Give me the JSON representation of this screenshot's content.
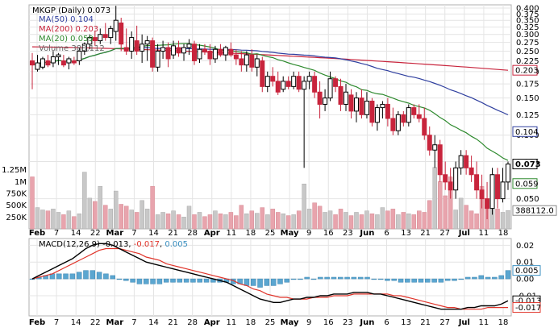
{
  "chart_data": [
    {
      "type": "candlestick",
      "title": "MKGP (Daily) 0.073",
      "ticker": "MKGP",
      "period": "Daily",
      "last_price": "0.073",
      "y_scale": "log",
      "ylim": [
        0.04,
        0.4
      ],
      "y_ticks": [
        "0.400",
        "0.375",
        "0.350",
        "0.325",
        "0.300",
        "0.275",
        "0.250",
        "0.225",
        "0.200",
        "0.175",
        "0.150",
        "0.125",
        "0.100",
        "0.075",
        "0.050"
      ],
      "volume_ticks": [
        "1.25M",
        "1M",
        "750K",
        "500K",
        "250K"
      ],
      "x_labels": [
        "Feb",
        "7",
        "14",
        "22",
        "Mar",
        "7",
        "14",
        "21",
        "28",
        "Apr",
        "11",
        "18",
        "25",
        "May",
        "9",
        "16",
        "23",
        "Jun",
        "6",
        "13",
        "21",
        "27",
        "Jul",
        "11",
        "18"
      ],
      "series": [
        {
          "name": "MA(50)",
          "label": "MA(50) 0.104",
          "value": "0.104",
          "color": "#2f3f9f"
        },
        {
          "name": "MA(200)",
          "label": "MA(200) 0.203",
          "value": "0.203",
          "color": "#c8243c"
        },
        {
          "name": "MA(20)",
          "label": "MA(20) 0.059",
          "value": "0.059",
          "color": "#2e8a2e"
        },
        {
          "name": "Volume",
          "label": "Volume 388,112",
          "value": "388,112",
          "color": "#999999"
        }
      ],
      "right_labels": [
        {
          "value": "0.203",
          "series": "MA(200)"
        },
        {
          "value": "0.104",
          "series": "MA(50)"
        },
        {
          "value": "0.073",
          "series": "Price"
        },
        {
          "value": "0.059",
          "series": "MA(20)"
        },
        {
          "value": "388112.0",
          "series": "Volume"
        }
      ],
      "candles": [
        [
          0.225,
          0.245,
          0.165,
          0.215
        ],
        [
          0.205,
          0.24,
          0.2,
          0.22
        ],
        [
          0.21,
          0.235,
          0.205,
          0.23
        ],
        [
          0.225,
          0.24,
          0.21,
          0.215
        ],
        [
          0.22,
          0.25,
          0.21,
          0.235
        ],
        [
          0.235,
          0.245,
          0.215,
          0.24
        ],
        [
          0.225,
          0.24,
          0.21,
          0.215
        ],
        [
          0.22,
          0.235,
          0.205,
          0.23
        ],
        [
          0.225,
          0.235,
          0.215,
          0.22
        ],
        [
          0.225,
          0.26,
          0.215,
          0.25
        ],
        [
          0.25,
          0.275,
          0.24,
          0.27
        ],
        [
          0.27,
          0.3,
          0.255,
          0.29
        ],
        [
          0.29,
          0.31,
          0.265,
          0.28
        ],
        [
          0.28,
          0.32,
          0.27,
          0.3
        ],
        [
          0.3,
          0.34,
          0.28,
          0.29
        ],
        [
          0.29,
          0.33,
          0.27,
          0.32
        ],
        [
          0.31,
          0.41,
          0.28,
          0.35
        ],
        [
          0.34,
          0.36,
          0.25,
          0.27
        ],
        [
          0.26,
          0.32,
          0.24,
          0.25
        ],
        [
          0.25,
          0.31,
          0.23,
          0.29
        ],
        [
          0.28,
          0.33,
          0.24,
          0.25
        ],
        [
          0.25,
          0.3,
          0.22,
          0.27
        ],
        [
          0.27,
          0.295,
          0.225,
          0.28
        ],
        [
          0.28,
          0.29,
          0.2,
          0.21
        ],
        [
          0.21,
          0.27,
          0.2,
          0.25
        ],
        [
          0.25,
          0.28,
          0.23,
          0.26
        ],
        [
          0.26,
          0.275,
          0.21,
          0.23
        ],
        [
          0.24,
          0.28,
          0.23,
          0.265
        ],
        [
          0.26,
          0.28,
          0.235,
          0.245
        ],
        [
          0.245,
          0.27,
          0.225,
          0.26
        ],
        [
          0.26,
          0.285,
          0.24,
          0.27
        ],
        [
          0.27,
          0.28,
          0.215,
          0.225
        ],
        [
          0.23,
          0.27,
          0.22,
          0.255
        ],
        [
          0.255,
          0.27,
          0.24,
          0.25
        ],
        [
          0.25,
          0.27,
          0.215,
          0.23
        ],
        [
          0.23,
          0.265,
          0.22,
          0.255
        ],
        [
          0.255,
          0.27,
          0.235,
          0.24
        ],
        [
          0.24,
          0.265,
          0.225,
          0.26
        ],
        [
          0.255,
          0.275,
          0.235,
          0.24
        ],
        [
          0.24,
          0.255,
          0.215,
          0.23
        ],
        [
          0.23,
          0.25,
          0.2,
          0.215
        ],
        [
          0.215,
          0.25,
          0.2,
          0.24
        ],
        [
          0.24,
          0.255,
          0.2,
          0.21
        ],
        [
          0.21,
          0.24,
          0.19,
          0.23
        ],
        [
          0.225,
          0.235,
          0.16,
          0.17
        ],
        [
          0.17,
          0.2,
          0.16,
          0.19
        ],
        [
          0.19,
          0.21,
          0.17,
          0.18
        ],
        [
          0.18,
          0.2,
          0.155,
          0.16
        ],
        [
          0.165,
          0.19,
          0.16,
          0.18
        ],
        [
          0.18,
          0.19,
          0.165,
          0.17
        ],
        [
          0.17,
          0.2,
          0.165,
          0.19
        ],
        [
          0.19,
          0.2,
          0.16,
          0.165
        ],
        [
          0.165,
          0.19,
          0.07,
          0.18
        ],
        [
          0.18,
          0.2,
          0.165,
          0.19
        ],
        [
          0.19,
          0.2,
          0.15,
          0.16
        ],
        [
          0.16,
          0.18,
          0.12,
          0.14
        ],
        [
          0.14,
          0.165,
          0.13,
          0.15
        ],
        [
          0.15,
          0.2,
          0.145,
          0.185
        ],
        [
          0.185,
          0.19,
          0.16,
          0.17
        ],
        [
          0.17,
          0.185,
          0.13,
          0.14
        ],
        [
          0.14,
          0.175,
          0.13,
          0.16
        ],
        [
          0.155,
          0.165,
          0.12,
          0.13
        ],
        [
          0.13,
          0.16,
          0.115,
          0.15
        ],
        [
          0.15,
          0.165,
          0.12,
          0.125
        ],
        [
          0.125,
          0.16,
          0.12,
          0.145
        ],
        [
          0.145,
          0.15,
          0.11,
          0.115
        ],
        [
          0.115,
          0.14,
          0.105,
          0.135
        ],
        [
          0.135,
          0.145,
          0.12,
          0.14
        ],
        [
          0.14,
          0.15,
          0.11,
          0.12
        ],
        [
          0.12,
          0.135,
          0.1,
          0.105
        ],
        [
          0.105,
          0.13,
          0.1,
          0.125
        ],
        [
          0.125,
          0.13,
          0.11,
          0.115
        ],
        [
          0.115,
          0.14,
          0.11,
          0.135
        ],
        [
          0.135,
          0.14,
          0.12,
          0.125
        ],
        [
          0.125,
          0.14,
          0.115,
          0.12
        ],
        [
          0.12,
          0.135,
          0.095,
          0.1
        ],
        [
          0.1,
          0.11,
          0.08,
          0.085
        ],
        [
          0.085,
          0.1,
          0.07,
          0.09
        ],
        [
          0.09,
          0.095,
          0.06,
          0.065
        ],
        [
          0.065,
          0.075,
          0.055,
          0.06
        ],
        [
          0.06,
          0.07,
          0.05,
          0.055
        ],
        [
          0.055,
          0.075,
          0.05,
          0.07
        ],
        [
          0.07,
          0.085,
          0.065,
          0.08
        ],
        [
          0.08,
          0.085,
          0.065,
          0.07
        ],
        [
          0.07,
          0.08,
          0.06,
          0.065
        ],
        [
          0.065,
          0.075,
          0.05,
          0.055
        ],
        [
          0.055,
          0.065,
          0.045,
          0.05
        ],
        [
          0.05,
          0.06,
          0.04,
          0.045
        ],
        [
          0.045,
          0.07,
          0.042,
          0.065
        ],
        [
          0.065,
          0.07,
          0.045,
          0.05
        ],
        [
          0.05,
          0.07,
          0.048,
          0.06
        ],
        [
          0.06,
          0.075,
          0.055,
          0.073
        ]
      ],
      "volume": [
        1100000,
        450000,
        400000,
        380000,
        420000,
        350000,
        300000,
        380000,
        260000,
        320000,
        1200000,
        650000,
        580000,
        900000,
        500000,
        420000,
        800000,
        520000,
        480000,
        400000,
        350000,
        600000,
        420000,
        900000,
        300000,
        350000,
        320000,
        380000,
        300000,
        250000,
        480000,
        300000,
        350000,
        260000,
        300000,
        380000,
        320000,
        300000,
        350000,
        280000,
        500000,
        320000,
        380000,
        330000,
        450000,
        300000,
        420000,
        350000,
        320000,
        280000,
        300000,
        380000,
        950000,
        420000,
        550000,
        480000,
        350000,
        380000,
        300000,
        420000,
        350000,
        280000,
        350000,
        300000,
        380000,
        320000,
        300000,
        450000,
        380000,
        420000,
        300000,
        350000,
        320000,
        300000,
        380000,
        350000,
        600000,
        1300000,
        1000000,
        700000,
        1100000,
        400000,
        650000,
        500000,
        380000,
        320000,
        900000,
        450000,
        1150000,
        420000,
        350000,
        388112
      ],
      "macd_label": "MACD(12,26,9) -0.013, -0.017, 0.005",
      "macd_name": "MACD(12,26,9)",
      "macd_values": [
        "-0.013",
        "-0.017",
        "0.005"
      ],
      "macd_ticks": [
        "0.02",
        "0.01",
        "0.00",
        "-0.01"
      ],
      "macd_right_labels": [
        "0.005",
        "-0.013",
        "-0.017"
      ],
      "macd_line": [
        0.0,
        0.002,
        0.004,
        0.006,
        0.008,
        0.01,
        0.012,
        0.015,
        0.018,
        0.02,
        0.021,
        0.021,
        0.02,
        0.018,
        0.016,
        0.014,
        0.012,
        0.01,
        0.009,
        0.008,
        0.007,
        0.006,
        0.005,
        0.004,
        0.003,
        0.002,
        0.001,
        0.0,
        -0.001,
        -0.002,
        -0.004,
        -0.006,
        -0.008,
        -0.01,
        -0.012,
        -0.013,
        -0.014,
        -0.014,
        -0.013,
        -0.012,
        -0.012,
        -0.011,
        -0.011,
        -0.01,
        -0.01,
        -0.009,
        -0.009,
        -0.009,
        -0.008,
        -0.008,
        -0.008,
        -0.009,
        -0.009,
        -0.01,
        -0.011,
        -0.012,
        -0.013,
        -0.014,
        -0.015,
        -0.016,
        -0.017,
        -0.018,
        -0.018,
        -0.018,
        -0.018,
        -0.017,
        -0.017,
        -0.016,
        -0.016,
        -0.016,
        -0.015,
        -0.013
      ],
      "macd_signal": [
        0.0,
        0.001,
        0.002,
        0.003,
        0.005,
        0.007,
        0.009,
        0.011,
        0.013,
        0.015,
        0.017,
        0.018,
        0.018,
        0.018,
        0.017,
        0.016,
        0.015,
        0.013,
        0.012,
        0.011,
        0.009,
        0.008,
        0.007,
        0.006,
        0.005,
        0.004,
        0.003,
        0.002,
        0.001,
        0.0,
        -0.001,
        -0.003,
        -0.004,
        -0.006,
        -0.007,
        -0.009,
        -0.01,
        -0.011,
        -0.011,
        -0.012,
        -0.012,
        -0.012,
        -0.011,
        -0.011,
        -0.011,
        -0.01,
        -0.01,
        -0.01,
        -0.009,
        -0.009,
        -0.009,
        -0.009,
        -0.009,
        -0.009,
        -0.01,
        -0.01,
        -0.011,
        -0.012,
        -0.013,
        -0.014,
        -0.015,
        -0.016,
        -0.017,
        -0.017,
        -0.018,
        -0.018,
        -0.018,
        -0.018,
        -0.017,
        -0.017,
        -0.017,
        -0.017
      ],
      "macd_hist": [
        0.0,
        0.001,
        0.002,
        0.003,
        0.003,
        0.003,
        0.003,
        0.004,
        0.005,
        0.005,
        0.004,
        0.003,
        0.002,
        0.0,
        -0.001,
        -0.002,
        -0.003,
        -0.003,
        -0.003,
        -0.003,
        -0.002,
        -0.002,
        -0.002,
        -0.002,
        -0.002,
        -0.002,
        -0.002,
        -0.002,
        -0.002,
        -0.002,
        -0.003,
        -0.003,
        -0.004,
        -0.004,
        -0.005,
        -0.004,
        -0.004,
        -0.003,
        -0.002,
        0.0,
        0.0,
        0.001,
        0.0,
        0.001,
        0.001,
        0.001,
        0.001,
        0.001,
        0.001,
        0.001,
        0.001,
        0.0,
        0.0,
        -0.001,
        -0.001,
        -0.002,
        -0.002,
        -0.002,
        -0.002,
        -0.002,
        -0.002,
        -0.002,
        -0.001,
        -0.001,
        0.0,
        0.001,
        0.001,
        0.002,
        0.001,
        0.001,
        0.002,
        0.005
      ]
    }
  ]
}
